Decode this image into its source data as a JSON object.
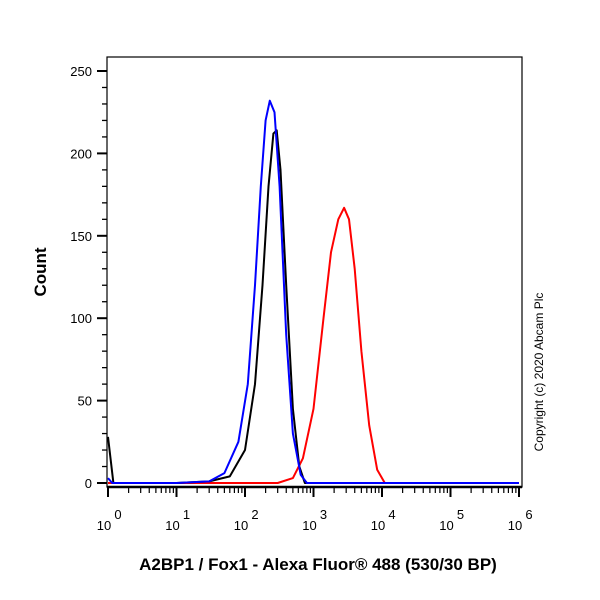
{
  "chart_data": {
    "type": "line",
    "title": "",
    "xlabel": "A2BP1 / Fox1 - Alexa Fluor® 488 (530/30 BP)",
    "ylabel": "Count",
    "xscale": "log",
    "xlim": [
      1,
      1000000
    ],
    "ylim": [
      0,
      250
    ],
    "x_tick_labels": [
      "10^0",
      "10^1",
      "10^2",
      "10^3",
      "10^4",
      "10^5",
      "10^6"
    ],
    "y_tick_labels": [
      "0",
      "50",
      "100",
      "150",
      "200",
      "250"
    ],
    "grid": false,
    "legend": null,
    "annotation": "Copyright (c) 2020 Abcam Plc",
    "series": [
      {
        "name": "Blue",
        "color": "#0000ff",
        "points": [
          [
            1,
            3
          ],
          [
            1.15,
            0
          ],
          [
            10,
            0
          ],
          [
            30,
            1
          ],
          [
            50,
            6
          ],
          [
            80,
            25
          ],
          [
            110,
            60
          ],
          [
            140,
            120
          ],
          [
            170,
            180
          ],
          [
            200,
            220
          ],
          [
            230,
            232
          ],
          [
            270,
            225
          ],
          [
            320,
            180
          ],
          [
            400,
            90
          ],
          [
            500,
            30
          ],
          [
            650,
            5
          ],
          [
            800,
            0
          ],
          [
            1000000,
            0
          ]
        ]
      },
      {
        "name": "Black",
        "color": "#000000",
        "points": [
          [
            1,
            28
          ],
          [
            1.2,
            0
          ],
          [
            10,
            0
          ],
          [
            30,
            1
          ],
          [
            60,
            4
          ],
          [
            100,
            20
          ],
          [
            140,
            60
          ],
          [
            180,
            120
          ],
          [
            220,
            180
          ],
          [
            260,
            212
          ],
          [
            290,
            214
          ],
          [
            330,
            190
          ],
          [
            400,
            120
          ],
          [
            500,
            45
          ],
          [
            620,
            10
          ],
          [
            750,
            0
          ],
          [
            1000000,
            0
          ]
        ]
      },
      {
        "name": "Red",
        "color": "#ff0000",
        "points": [
          [
            1,
            0
          ],
          [
            300,
            0
          ],
          [
            500,
            3
          ],
          [
            700,
            15
          ],
          [
            1000,
            45
          ],
          [
            1400,
            100
          ],
          [
            1800,
            140
          ],
          [
            2300,
            160
          ],
          [
            2800,
            167
          ],
          [
            3300,
            160
          ],
          [
            4000,
            130
          ],
          [
            5000,
            80
          ],
          [
            6500,
            35
          ],
          [
            8500,
            8
          ],
          [
            11000,
            0
          ],
          [
            1000000,
            0
          ]
        ]
      }
    ]
  },
  "axes": {
    "y_label": "Count",
    "x_label": "A2BP1 / Fox1 - Alexa Fluor® 488 (530/30 BP)",
    "copyright": "Copyright (c) 2020 Abcam Plc"
  }
}
